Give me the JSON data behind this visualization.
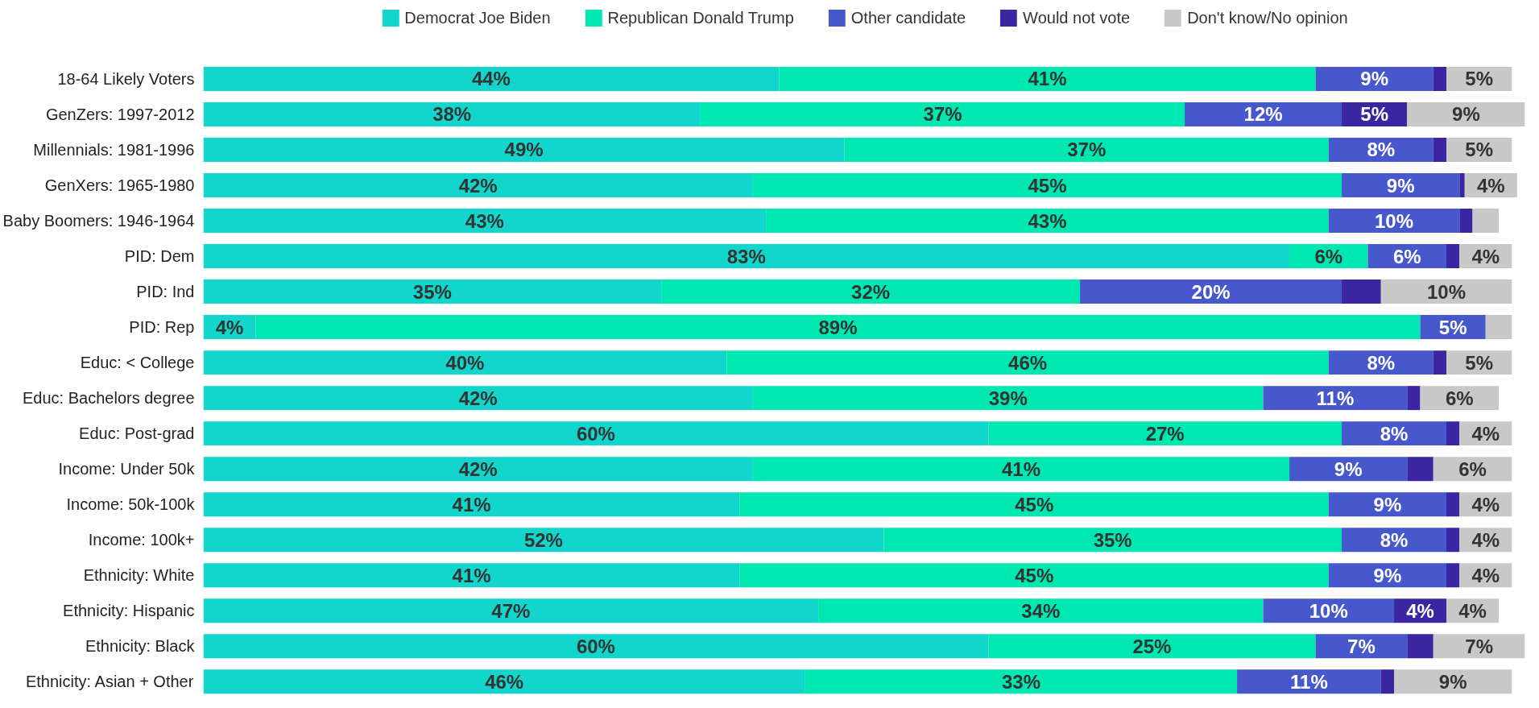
{
  "chart_data": {
    "type": "bar",
    "orientation": "horizontal",
    "stacked": true,
    "legend": "top",
    "grid": false,
    "categories": [
      "18-64 Likely Voters",
      "GenZers: 1997-2012",
      "Millennials: 1981-1996",
      "GenXers: 1965-1980",
      "Baby Boomers: 1946-1964",
      "PID: Dem",
      "PID: Ind",
      "PID: Rep",
      "Educ: < College",
      "Educ: Bachelors degree",
      "Educ: Post-grad",
      "Income: Under 50k",
      "Income: 50k-100k",
      "Income: 100k+",
      "Ethnicity: White",
      "Ethnicity: Hispanic",
      "Ethnicity: Black",
      "Ethnicity: Asian + Other"
    ],
    "series": [
      {
        "name": "Democrat Joe Biden",
        "color": "#12d6cc",
        "values": [
          44,
          38,
          49,
          42,
          43,
          83,
          35,
          4,
          40,
          42,
          60,
          42,
          41,
          52,
          41,
          47,
          60,
          46
        ],
        "value_labels": [
          "44%",
          "38%",
          "49%",
          "42%",
          "43%",
          "83%",
          "35%",
          "4%",
          "40%",
          "42%",
          "60%",
          "42%",
          "41%",
          "52%",
          "41%",
          "47%",
          "60%",
          "46%"
        ]
      },
      {
        "name": "Republican Donald Trump",
        "color": "#00e8b2",
        "values": [
          41,
          37,
          37,
          45,
          43,
          6,
          32,
          89,
          46,
          39,
          27,
          41,
          45,
          35,
          45,
          34,
          25,
          33
        ],
        "value_labels": [
          "41%",
          "37%",
          "37%",
          "45%",
          "43%",
          "6%",
          "32%",
          "89%",
          "46%",
          "39%",
          "27%",
          "41%",
          "45%",
          "35%",
          "45%",
          "34%",
          "25%",
          "33%"
        ]
      },
      {
        "name": "Other candidate",
        "color": "#4658cc",
        "values": [
          9,
          12,
          8,
          9,
          10,
          6,
          20,
          5,
          8,
          11,
          8,
          9,
          9,
          8,
          9,
          10,
          7,
          11
        ],
        "value_labels": [
          "9%",
          "12%",
          "8%",
          "9%",
          "10%",
          "6%",
          "20%",
          "5%",
          "8%",
          "11%",
          "8%",
          "9%",
          "9%",
          "8%",
          "9%",
          "10%",
          "7%",
          "11%"
        ]
      },
      {
        "name": "Would not vote",
        "color": "#3a26a0",
        "values": [
          1,
          5,
          1,
          0.4,
          1,
          1,
          3,
          0,
          1,
          1,
          1,
          2,
          1,
          1,
          1,
          4,
          2,
          1
        ],
        "value_labels": [
          null,
          "5%",
          null,
          null,
          null,
          null,
          null,
          null,
          null,
          null,
          null,
          null,
          null,
          null,
          null,
          "4%",
          null,
          null
        ]
      },
      {
        "name": "Don't know/No opinion",
        "color": "#c8c8c8",
        "values": [
          5,
          9,
          5,
          4,
          2,
          4,
          10,
          2,
          5,
          6,
          4,
          6,
          4,
          4,
          4,
          4,
          7,
          9
        ],
        "value_labels": [
          "5%",
          "9%",
          "5%",
          "4%",
          null,
          "4%",
          "10%",
          null,
          "5%",
          "6%",
          "4%",
          "6%",
          "4%",
          "4%",
          "4%",
          "4%",
          "7%",
          "9%"
        ]
      }
    ]
  }
}
